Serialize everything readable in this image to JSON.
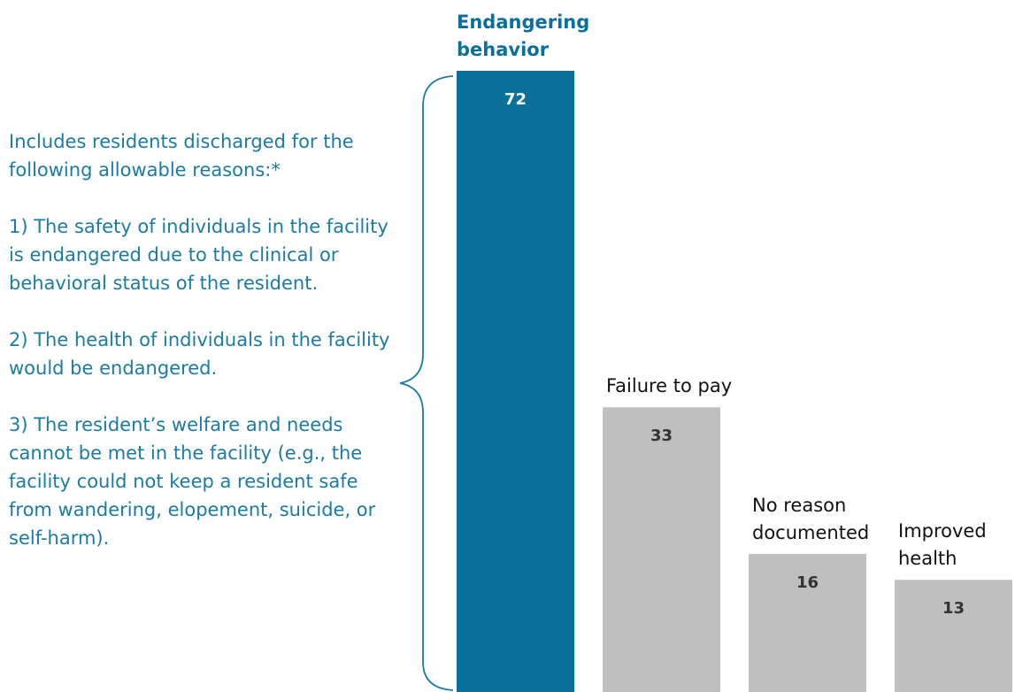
{
  "chart_data": {
    "type": "bar",
    "categories": [
      "Endangering behavior",
      "Failure to pay",
      "No reason documented",
      "Improved health"
    ],
    "values": [
      72,
      33,
      16,
      13
    ],
    "colors": [
      "#0b6f9c",
      "#bfbfbf",
      "#bfbfbf",
      "#bfbfbf"
    ],
    "annotation": [
      "Includes residents discharged for the following allowable reasons:*",
      "1) The safety of individuals in the facility is endangered due to the clinical or behavioral status of the resident.",
      "2) The health of individuals in the facility would be endangered.",
      "3) The resident’s welfare and needs cannot be met in the facility (e.g., the facility could not keep a resident safe from wandering, elopement, suicide, or self-harm)."
    ]
  }
}
